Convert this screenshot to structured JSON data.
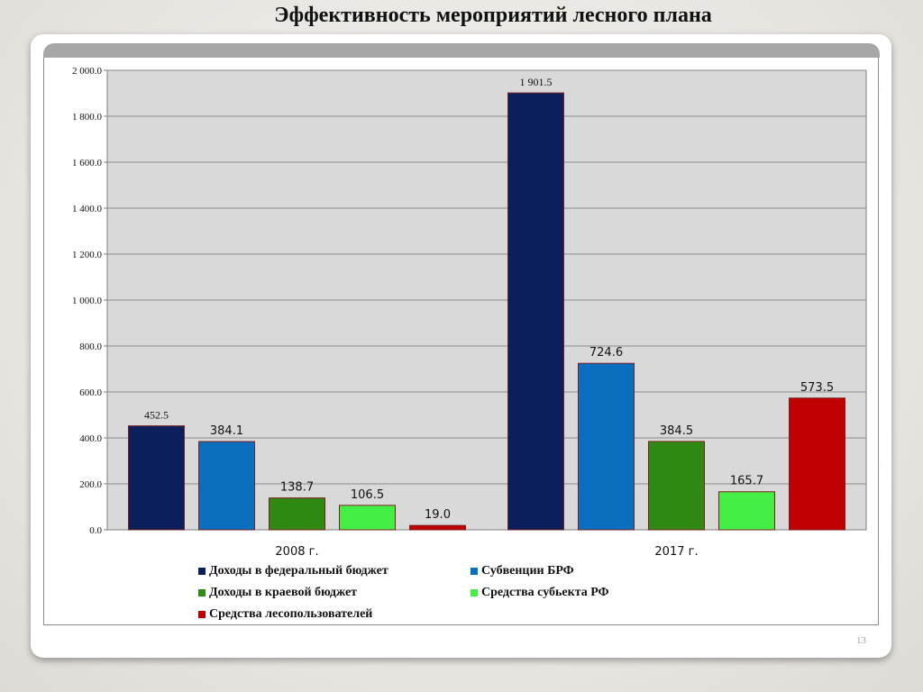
{
  "slide": {
    "title": "Эффективность мероприятий лесного плана",
    "page_number": "13"
  },
  "chart_data": {
    "type": "bar",
    "categories": [
      "2008 г.",
      "2017 г."
    ],
    "ylim": [
      0,
      2000
    ],
    "yticks": [
      "0.0",
      "200.0",
      "400.0",
      "600.0",
      "800.0",
      "1 000.0",
      "1 200.0",
      "1 400.0",
      "1 600.0",
      "1 800.0",
      "2 000.0"
    ],
    "grid": true,
    "legend_position": "bottom",
    "series": [
      {
        "name": "Доходы в федеральный бюджет",
        "color": "#0b1f5c",
        "values": [
          452.5,
          1901.5
        ],
        "labels": [
          "452.5",
          "1 901.5"
        ]
      },
      {
        "name": "Субвенции БРФ",
        "color": "#0b6fc0",
        "values": [
          384.1,
          724.6
        ],
        "labels": [
          "384.1",
          "724.6"
        ]
      },
      {
        "name": "Доходы в краевой бюджет",
        "color": "#2e8a12",
        "values": [
          138.7,
          384.5
        ],
        "labels": [
          "138.7",
          "384.5"
        ]
      },
      {
        "name": "Средства субьекта РФ",
        "color": "#44ee44",
        "values": [
          106.5,
          165.7
        ],
        "labels": [
          "106.5",
          "165.7"
        ]
      },
      {
        "name": "Средства лесопользователей",
        "color": "#c00000",
        "values": [
          19.0,
          573.5
        ],
        "labels": [
          "19.0",
          "573.5"
        ]
      }
    ]
  }
}
